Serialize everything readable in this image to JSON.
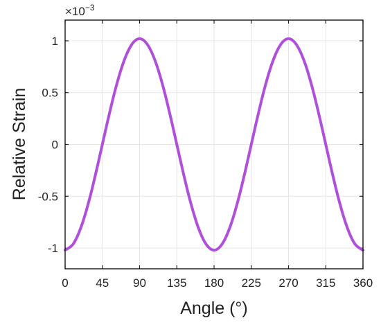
{
  "chart_data": {
    "type": "line",
    "title": "",
    "xlabel": "Angle (°)",
    "ylabel": "Relative Strain",
    "y_exponent_label": "×10",
    "y_exponent_power": "−3",
    "xlim": [
      0,
      360
    ],
    "ylim": [
      -1.2,
      1.2
    ],
    "grid": true,
    "legend": "none",
    "x_ticks": [
      0,
      45,
      90,
      135,
      180,
      225,
      270,
      315,
      360
    ],
    "x_tick_labels": [
      "0",
      "45",
      "90",
      "135",
      "180",
      "225",
      "270",
      "315",
      "360"
    ],
    "y_ticks": [
      1,
      0.5,
      0,
      -0.5,
      -1
    ],
    "y_tick_labels": [
      "1",
      "0.5",
      "0",
      "-0.5",
      "-1"
    ],
    "series": [
      {
        "color": "#b04fd9",
        "x": [
          0,
          10,
          20,
          30,
          40,
          50,
          60,
          70,
          80,
          90,
          100,
          110,
          120,
          130,
          140,
          150,
          160,
          170,
          180,
          190,
          200,
          210,
          220,
          230,
          240,
          250,
          260,
          270,
          280,
          290,
          300,
          310,
          320,
          330,
          340,
          350,
          360
        ],
        "y": [
          -1.02,
          -0.958,
          -0.781,
          -0.51,
          -0.177,
          0.177,
          0.51,
          0.781,
          0.958,
          1.02,
          0.958,
          0.781,
          0.51,
          0.177,
          -0.177,
          -0.51,
          -0.781,
          -0.958,
          -1.02,
          -0.958,
          -0.781,
          -0.51,
          -0.177,
          0.177,
          0.51,
          0.781,
          0.958,
          1.02,
          0.958,
          0.781,
          0.51,
          0.177,
          -0.177,
          -0.51,
          -0.781,
          -0.958,
          -1.02
        ]
      }
    ]
  }
}
